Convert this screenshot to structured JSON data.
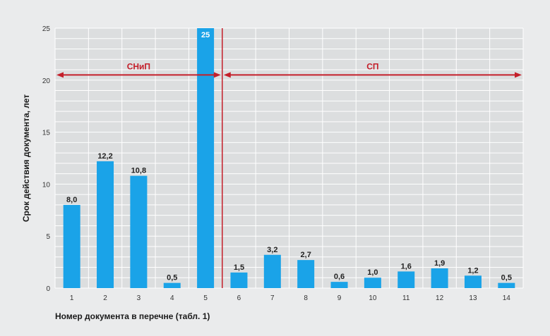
{
  "chart_data": {
    "type": "bar",
    "categories": [
      "1",
      "2",
      "3",
      "4",
      "5",
      "6",
      "7",
      "8",
      "9",
      "10",
      "11",
      "12",
      "13",
      "14"
    ],
    "values": [
      8.0,
      12.2,
      10.8,
      0.5,
      25,
      1.5,
      3.2,
      2.7,
      0.6,
      1.0,
      1.6,
      1.9,
      1.2,
      0.5
    ],
    "value_labels": [
      "8,0",
      "12,2",
      "10,8",
      "0,5",
      "25",
      "1,5",
      "3,2",
      "2,7",
      "0,6",
      "1,0",
      "1,6",
      "1,9",
      "1,2",
      "0,5"
    ],
    "xlabel": "Номер документа в перечне (табл. 1)",
    "ylabel": "Срок действия документа, лет",
    "ylim": [
      0,
      25
    ],
    "yticks": [
      "0",
      "5",
      "10",
      "15",
      "20",
      "25"
    ],
    "grid": true,
    "bar_color": "#1aa3e8",
    "accent_color": "#c41f2a",
    "regions": [
      {
        "label": "СНиП",
        "from_category": "1",
        "to_category": "5"
      },
      {
        "label": "СП",
        "from_category": "6",
        "to_category": "14"
      }
    ],
    "region_arrow_y": 20.5
  }
}
